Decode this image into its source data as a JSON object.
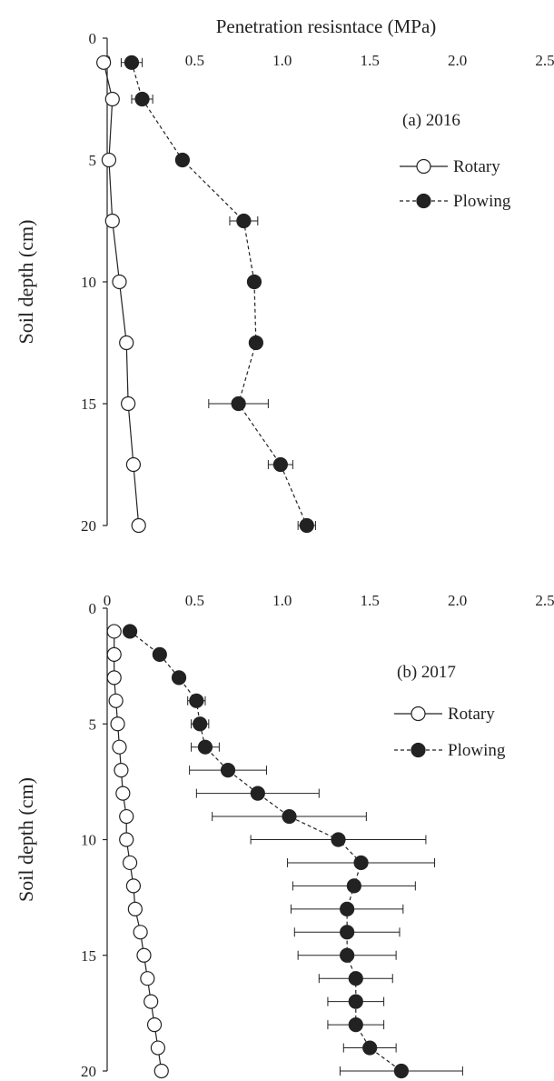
{
  "chart_data": [
    {
      "type": "scatter",
      "title": "Penetration resisntace (MPa)",
      "xlabel": "Penetration resisntace (MPa)",
      "ylabel": "Soil depth (cm)",
      "annotation": "(a) 2016",
      "xlim": [
        0,
        2.5
      ],
      "ylim": [
        0,
        20
      ],
      "y_inverted": true,
      "x_axis_position": "top",
      "xticks": [
        "0",
        "0.5",
        "1.0",
        "1.5",
        "2.0",
        "2.5"
      ],
      "yticks": [
        "0",
        "5",
        "10",
        "15",
        "20"
      ],
      "legend_position": "right",
      "series": [
        {
          "name": "Rotary",
          "marker": "open-circle",
          "line": "solid",
          "color": "#222222",
          "points": [
            {
              "x": -0.02,
              "y": 1
            },
            {
              "x": 0.03,
              "y": 2.5
            },
            {
              "x": 0.01,
              "y": 5
            },
            {
              "x": 0.03,
              "y": 7.5
            },
            {
              "x": 0.07,
              "y": 10
            },
            {
              "x": 0.11,
              "y": 12.5
            },
            {
              "x": 0.12,
              "y": 15
            },
            {
              "x": 0.15,
              "y": 17.5
            },
            {
              "x": 0.18,
              "y": 20
            }
          ]
        },
        {
          "name": "Plowing",
          "marker": "filled-circle",
          "line": "dashed",
          "color": "#222222",
          "points": [
            {
              "x": 0.14,
              "y": 1,
              "err": 0.06
            },
            {
              "x": 0.2,
              "y": 2.5,
              "err": 0.06
            },
            {
              "x": 0.43,
              "y": 5,
              "err": 0
            },
            {
              "x": 0.78,
              "y": 7.5,
              "err": 0.08
            },
            {
              "x": 0.84,
              "y": 10,
              "err": 0.03
            },
            {
              "x": 0.85,
              "y": 12.5,
              "err": 0.02
            },
            {
              "x": 0.75,
              "y": 15,
              "err": 0.17
            },
            {
              "x": 0.99,
              "y": 17.5,
              "err": 0.07
            },
            {
              "x": 1.14,
              "y": 20,
              "err": 0.05
            }
          ]
        }
      ]
    },
    {
      "type": "scatter",
      "title": "",
      "xlabel": "",
      "ylabel": "Soil depth (cm)",
      "annotation": "(b) 2017",
      "xlim": [
        0,
        2.5
      ],
      "ylim": [
        0,
        20
      ],
      "y_inverted": true,
      "x_axis_position": "top",
      "xticks": [
        "0",
        "0.5",
        "1.0",
        "1.5",
        "2.0",
        "2.5"
      ],
      "yticks": [
        "0",
        "5",
        "10",
        "15",
        "20"
      ],
      "legend_position": "right",
      "series": [
        {
          "name": "Rotary",
          "marker": "open-circle",
          "line": "solid",
          "color": "#222222",
          "points": [
            {
              "x": 0.04,
              "y": 1
            },
            {
              "x": 0.04,
              "y": 2
            },
            {
              "x": 0.04,
              "y": 3
            },
            {
              "x": 0.05,
              "y": 4
            },
            {
              "x": 0.06,
              "y": 5
            },
            {
              "x": 0.07,
              "y": 6
            },
            {
              "x": 0.08,
              "y": 7
            },
            {
              "x": 0.09,
              "y": 8
            },
            {
              "x": 0.11,
              "y": 9
            },
            {
              "x": 0.11,
              "y": 10
            },
            {
              "x": 0.13,
              "y": 11
            },
            {
              "x": 0.15,
              "y": 12
            },
            {
              "x": 0.16,
              "y": 13
            },
            {
              "x": 0.19,
              "y": 14
            },
            {
              "x": 0.21,
              "y": 15
            },
            {
              "x": 0.23,
              "y": 16
            },
            {
              "x": 0.25,
              "y": 17
            },
            {
              "x": 0.27,
              "y": 18
            },
            {
              "x": 0.29,
              "y": 19
            },
            {
              "x": 0.31,
              "y": 20
            }
          ]
        },
        {
          "name": "Plowing",
          "marker": "filled-circle",
          "line": "dashed",
          "color": "#222222",
          "points": [
            {
              "x": 0.13,
              "y": 1,
              "err": 0
            },
            {
              "x": 0.3,
              "y": 2,
              "err": 0
            },
            {
              "x": 0.41,
              "y": 3,
              "err": 0
            },
            {
              "x": 0.51,
              "y": 4,
              "err": 0.05
            },
            {
              "x": 0.53,
              "y": 5,
              "err": 0.05
            },
            {
              "x": 0.56,
              "y": 6,
              "err": 0.08
            },
            {
              "x": 0.69,
              "y": 7,
              "err": 0.22
            },
            {
              "x": 0.86,
              "y": 8,
              "err": 0.35
            },
            {
              "x": 1.04,
              "y": 9,
              "err": 0.44
            },
            {
              "x": 1.32,
              "y": 10,
              "err": 0.5
            },
            {
              "x": 1.45,
              "y": 11,
              "err": 0.42
            },
            {
              "x": 1.41,
              "y": 12,
              "err": 0.35
            },
            {
              "x": 1.37,
              "y": 13,
              "err": 0.32
            },
            {
              "x": 1.37,
              "y": 14,
              "err": 0.3
            },
            {
              "x": 1.37,
              "y": 15,
              "err": 0.28
            },
            {
              "x": 1.42,
              "y": 16,
              "err": 0.21
            },
            {
              "x": 1.42,
              "y": 17,
              "err": 0.16
            },
            {
              "x": 1.42,
              "y": 18,
              "err": 0.16
            },
            {
              "x": 1.5,
              "y": 19,
              "err": 0.15
            },
            {
              "x": 1.68,
              "y": 20,
              "err": 0.35
            }
          ]
        }
      ]
    }
  ]
}
